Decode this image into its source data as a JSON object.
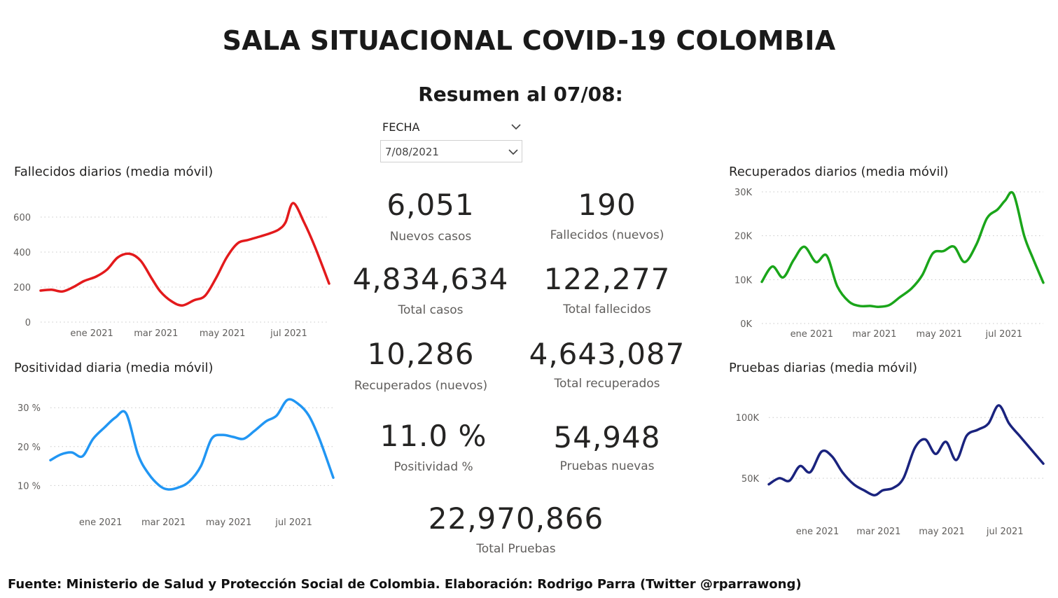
{
  "header": {
    "title": "SALA SITUACIONAL COVID-19 COLOMBIA",
    "subtitle": "Resumen al 07/08:"
  },
  "slicer": {
    "label": "FECHA",
    "value": "7/08/2021"
  },
  "kpis": {
    "nuevos_casos": {
      "value": "6,051",
      "label": "Nuevos casos"
    },
    "fallecidos_nuevos": {
      "value": "190",
      "label": "Fallecidos (nuevos)"
    },
    "total_casos": {
      "value": "4,834,634",
      "label": "Total casos"
    },
    "total_fallecidos": {
      "value": "122,277",
      "label": "Total fallecidos"
    },
    "recuperados_nuevos": {
      "value": "10,286",
      "label": "Recuperados (nuevos)"
    },
    "total_recuperados": {
      "value": "4,643,087",
      "label": "Total recuperados"
    },
    "positividad": {
      "value": "11.0 %",
      "label": "Positividad %"
    },
    "pruebas_nuevas": {
      "value": "54,948",
      "label": "Pruebas nuevas"
    },
    "total_pruebas": {
      "value": "22,970,866",
      "label": "Total Pruebas"
    }
  },
  "footer": "Fuente: Ministerio de Salud y Protección Social de Colombia. Elaboración: Rodrigo Parra (Twitter @rparrawong)",
  "chart_data": [
    {
      "id": "fallecidos",
      "type": "line",
      "title": "Fallecidos diarios (media móvil)",
      "color": "#e31a1c",
      "yticks": [
        0,
        200,
        400,
        600
      ],
      "ytick_labels": [
        "0",
        "200",
        "400",
        "600"
      ],
      "ylim": [
        0,
        700
      ],
      "xlim": [
        "2020-11-15",
        "2021-08-07"
      ],
      "xticks": [
        "2021-01-01",
        "2021-03-01",
        "2021-05-01",
        "2021-07-01"
      ],
      "xtick_labels": [
        "ene 2021",
        "mar 2021",
        "may 2021",
        "jul 2021"
      ],
      "x": [
        "2020-11-15",
        "2020-11-25",
        "2020-12-05",
        "2020-12-15",
        "2020-12-25",
        "2021-01-05",
        "2021-01-15",
        "2021-01-25",
        "2021-02-05",
        "2021-02-15",
        "2021-02-25",
        "2021-03-05",
        "2021-03-15",
        "2021-03-25",
        "2021-04-05",
        "2021-04-15",
        "2021-04-25",
        "2021-05-05",
        "2021-05-15",
        "2021-05-25",
        "2021-06-05",
        "2021-06-15",
        "2021-06-22",
        "2021-06-28",
        "2021-07-05",
        "2021-07-15",
        "2021-07-25",
        "2021-08-07"
      ],
      "y": [
        180,
        185,
        175,
        200,
        235,
        260,
        300,
        370,
        390,
        350,
        250,
        175,
        120,
        95,
        125,
        150,
        250,
        370,
        450,
        470,
        490,
        510,
        530,
        570,
        680,
        570,
        430,
        220
      ]
    },
    {
      "id": "positividad",
      "type": "line",
      "title": "Positividad diaria (media móvil)",
      "color": "#2196f3",
      "yticks": [
        10,
        20,
        30
      ],
      "ytick_labels": [
        "10 %",
        "20 %",
        "30 %"
      ],
      "ylim": [
        7,
        34
      ],
      "xlim": [
        "2020-11-15",
        "2021-08-07"
      ],
      "xticks": [
        "2021-01-01",
        "2021-03-01",
        "2021-05-01",
        "2021-07-01"
      ],
      "xtick_labels": [
        "ene 2021",
        "mar 2021",
        "may 2021",
        "jul 2021"
      ],
      "x": [
        "2020-11-15",
        "2020-11-25",
        "2020-12-05",
        "2020-12-15",
        "2020-12-25",
        "2021-01-05",
        "2021-01-15",
        "2021-01-25",
        "2021-02-05",
        "2021-02-15",
        "2021-02-25",
        "2021-03-05",
        "2021-03-15",
        "2021-03-25",
        "2021-04-05",
        "2021-04-15",
        "2021-04-25",
        "2021-05-05",
        "2021-05-15",
        "2021-05-25",
        "2021-06-05",
        "2021-06-15",
        "2021-06-25",
        "2021-07-05",
        "2021-07-15",
        "2021-07-25",
        "2021-08-07"
      ],
      "y": [
        16.5,
        18,
        18.5,
        17.5,
        22,
        25,
        27.5,
        28.5,
        18,
        13,
        10,
        9,
        9.5,
        11,
        15,
        22,
        23,
        22.5,
        22,
        24,
        26.5,
        28,
        32,
        31,
        28,
        22,
        12
      ]
    },
    {
      "id": "recuperados",
      "type": "line",
      "title": "Recuperados diarios (media móvil)",
      "color": "#1aa51a",
      "yticks": [
        0,
        10000,
        20000,
        30000
      ],
      "ytick_labels": [
        "0K",
        "10K",
        "20K",
        "30K"
      ],
      "ylim": [
        0,
        30000
      ],
      "xlim": [
        "2020-11-15",
        "2021-08-07"
      ],
      "xticks": [
        "2021-01-01",
        "2021-03-01",
        "2021-05-01",
        "2021-07-01"
      ],
      "xtick_labels": [
        "ene 2021",
        "mar 2021",
        "may 2021",
        "jul 2021"
      ],
      "x": [
        "2020-11-15",
        "2020-11-25",
        "2020-12-05",
        "2020-12-15",
        "2020-12-25",
        "2021-01-05",
        "2021-01-15",
        "2021-01-25",
        "2021-02-05",
        "2021-02-15",
        "2021-02-25",
        "2021-03-05",
        "2021-03-15",
        "2021-03-25",
        "2021-04-05",
        "2021-04-15",
        "2021-04-25",
        "2021-05-05",
        "2021-05-15",
        "2021-05-25",
        "2021-06-05",
        "2021-06-15",
        "2021-06-25",
        "2021-07-02",
        "2021-07-10",
        "2021-07-20",
        "2021-07-28",
        "2021-08-07"
      ],
      "y": [
        9500,
        13000,
        10500,
        14500,
        17500,
        14000,
        15500,
        8500,
        5000,
        4000,
        4000,
        3800,
        4200,
        6000,
        8000,
        11000,
        16000,
        16500,
        17500,
        14000,
        18000,
        24000,
        26000,
        28000,
        29500,
        20000,
        15000,
        9300
      ]
    },
    {
      "id": "pruebas",
      "type": "line",
      "title": "Pruebas diarias (media móvil)",
      "color": "#1a237e",
      "yticks": [
        50000,
        100000
      ],
      "ytick_labels": [
        "50K",
        "100K"
      ],
      "ylim": [
        20000,
        118000
      ],
      "xlim": [
        "2020-11-15",
        "2021-08-07"
      ],
      "xticks": [
        "2021-01-01",
        "2021-03-01",
        "2021-05-01",
        "2021-07-01"
      ],
      "xtick_labels": [
        "ene 2021",
        "mar 2021",
        "may 2021",
        "jul 2021"
      ],
      "x": [
        "2020-11-15",
        "2020-11-25",
        "2020-12-05",
        "2020-12-15",
        "2020-12-25",
        "2021-01-05",
        "2021-01-15",
        "2021-01-25",
        "2021-02-05",
        "2021-02-15",
        "2021-02-25",
        "2021-03-05",
        "2021-03-15",
        "2021-03-25",
        "2021-04-05",
        "2021-04-15",
        "2021-04-25",
        "2021-05-05",
        "2021-05-15",
        "2021-05-25",
        "2021-06-05",
        "2021-06-15",
        "2021-06-25",
        "2021-07-05",
        "2021-07-15",
        "2021-07-25",
        "2021-08-07"
      ],
      "y": [
        45000,
        50000,
        48000,
        60000,
        55000,
        72000,
        68000,
        55000,
        45000,
        40000,
        36000,
        40000,
        42000,
        50000,
        75000,
        82000,
        70000,
        80000,
        65000,
        85000,
        90000,
        95000,
        110000,
        95000,
        85000,
        75000,
        62000
      ]
    }
  ]
}
